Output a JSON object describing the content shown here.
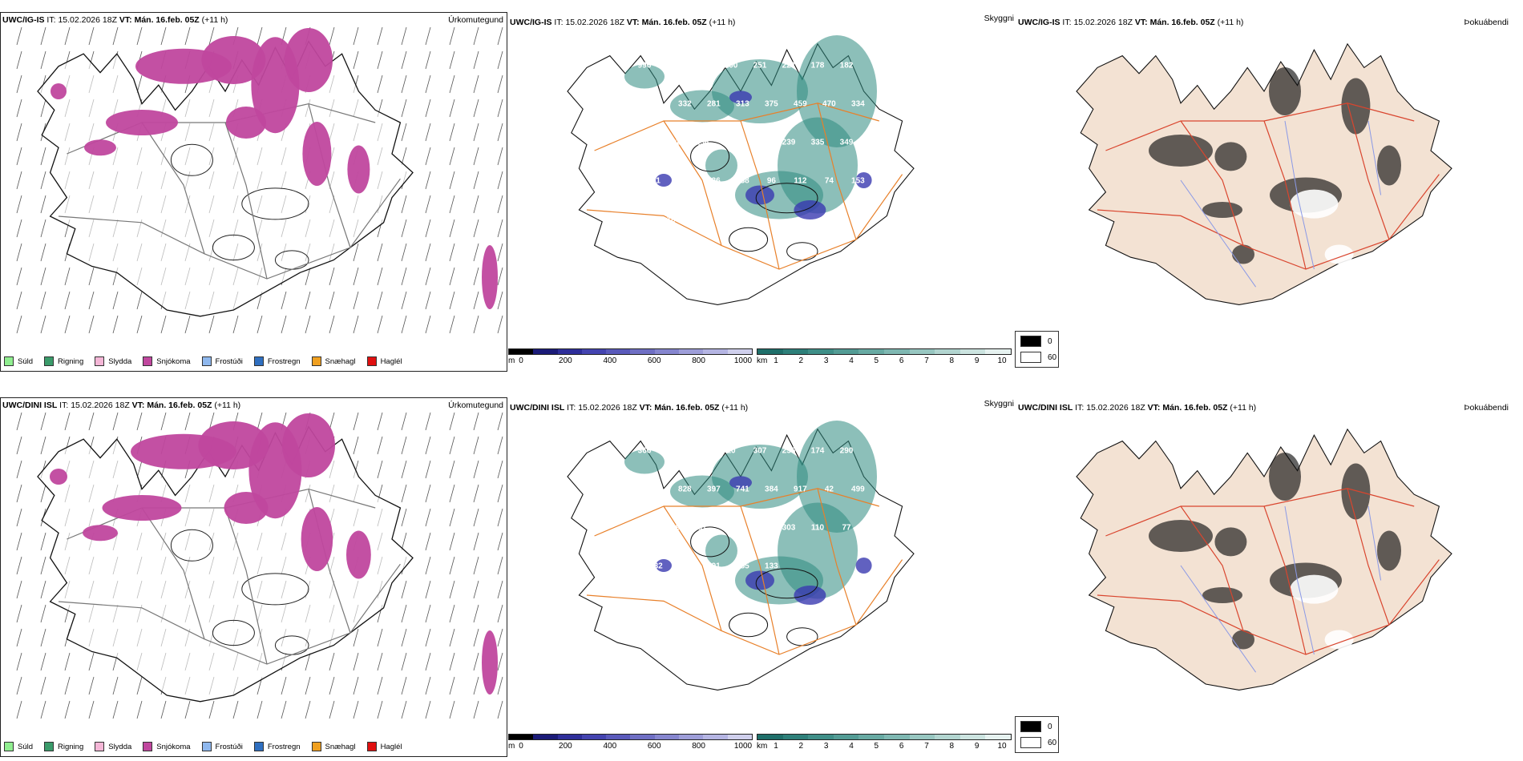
{
  "rows": [
    {
      "model": "UWC/IG-IS",
      "it_label": "IT:",
      "it_value": "15.02.2026 18Z",
      "vt_label": "VT:",
      "vt_value": "Mán. 16.feb. 05Z",
      "lead": "(+11 h)",
      "titles": [
        "Úrkomutegund",
        "Skyggni",
        "Þokuábendi"
      ],
      "snow_depth_labels": [
        "996",
        "984",
        "850",
        "200",
        "251",
        "227",
        "178",
        "182",
        "358",
        "332",
        "281",
        "313",
        "375",
        "459",
        "470",
        "334",
        "361",
        "261",
        "196",
        "845",
        "140",
        "239",
        "335",
        "349",
        "21",
        "322",
        "236",
        "138",
        "96",
        "112",
        "74",
        "153",
        "193",
        "188"
      ]
    },
    {
      "model": "UWC/DINI ISL",
      "it_label": "IT:",
      "it_value": "15.02.2026 18Z",
      "vt_label": "VT:",
      "vt_value": "Mán. 16.feb. 05Z",
      "lead": "(+11 h)",
      "titles": [
        "Úrkomutegund",
        "Skyggni",
        "Þokuábendi"
      ],
      "snow_depth_labels": [
        "366",
        "731",
        "805",
        "20",
        "307",
        "256",
        "174",
        "290",
        "512",
        "828",
        "397",
        "741",
        "384",
        "917",
        "42",
        "499",
        "54",
        "429",
        "81",
        "121",
        "860",
        "303",
        "110",
        "77",
        "132",
        "236",
        "191",
        "155",
        "133"
      ]
    }
  ],
  "precip_legend": [
    {
      "label": "Súld",
      "color": "#90ee90"
    },
    {
      "label": "Rigning",
      "color": "#3a9b6a"
    },
    {
      "label": "Slydda",
      "color": "#f4b6d6"
    },
    {
      "label": "Snjókoma",
      "color": "#c0479e"
    },
    {
      "label": "Frostúði",
      "color": "#8fb8ee"
    },
    {
      "label": "Frostregn",
      "color": "#2f6fc0"
    },
    {
      "label": "Snæhagl",
      "color": "#f0a020"
    },
    {
      "label": "Haglél",
      "color": "#e01010"
    }
  ],
  "height_scale": {
    "unit": "m",
    "ticks": [
      "0",
      "200",
      "400",
      "600",
      "800",
      "1000"
    ],
    "colors": [
      "#000000",
      "#1b1b78",
      "#2e2e9a",
      "#4444b0",
      "#5a5abb",
      "#6f6fc4",
      "#8686cf",
      "#9e9ed9",
      "#b5b5e3",
      "#cfcfec"
    ]
  },
  "visibility_scale": {
    "unit": "km",
    "ticks": [
      "1",
      "2",
      "3",
      "4",
      "5",
      "6",
      "7",
      "8",
      "9",
      "10"
    ],
    "colors": [
      "#1f6f6a",
      "#2e807a",
      "#3f8f88",
      "#539c95",
      "#68aaa3",
      "#7fb8b2",
      "#98c7c1",
      "#b2d5d0",
      "#cce4e0",
      "#e6f2f0"
    ]
  },
  "cloud_key": {
    "top": "0",
    "bottom": "60"
  },
  "colors": {
    "land": "#f3e2d3",
    "roads": "#e8802a",
    "roads_red": "#d9452e",
    "rivers": "#8a99e6",
    "coast": "#000000",
    "snow": "#c0479e",
    "vis_fill": "#2e8a80",
    "height_fill": "#3a3ab0"
  }
}
